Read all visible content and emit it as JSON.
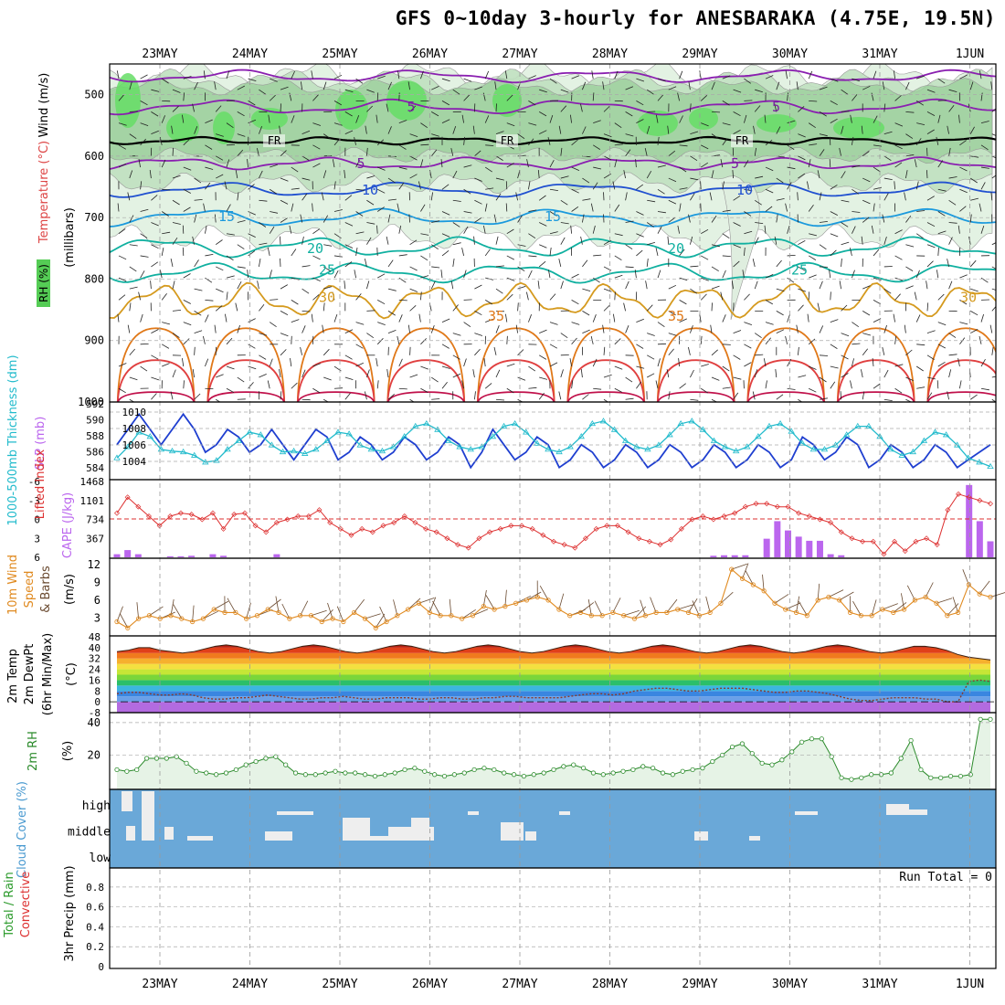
{
  "title": "GFS 0~10day 3-hourly for ANESBARAKA (4.75E, 19.5N)",
  "dates": [
    "23MAY",
    "24MAY",
    "25MAY",
    "26MAY",
    "27MAY",
    "28MAY",
    "29MAY",
    "30MAY",
    "31MAY",
    "1JUN"
  ],
  "colors": {
    "freezing": "#000000",
    "rh": "#66dd66",
    "slp": "#1f3fd0",
    "thickness": "#22bbcc",
    "lifted": "#dd3030",
    "cape": "#bb66ee",
    "wind10": "#e08a20",
    "barb": "#6a4a30",
    "rh2m": "#2a8a2a",
    "cloud": "#6aa8d8",
    "cloudfill": "#eeeeee"
  },
  "chart_data": [
    {
      "type": "heatmap",
      "id": "upper",
      "y_axis_title_rh": "RH (%)",
      "y_axis_title_temp": "Temperature (°C)",
      "y_axis_title_wind": "Wind (m/s)",
      "y_axis_title_units": "(millibars)",
      "yticks": [
        "500",
        "600",
        "700",
        "800",
        "900",
        "1000"
      ],
      "ylim": [
        450,
        1000
      ],
      "isotherm_labels": [
        {
          "text": "5",
          "level": 520,
          "color": "#7a1fa2"
        },
        {
          "text": "5",
          "level": 612,
          "color": "#7a1fa2"
        },
        {
          "text": "10",
          "level": 655,
          "color": "#2050d0"
        },
        {
          "text": "15",
          "level": 698,
          "color": "#1a99dd"
        },
        {
          "text": "20",
          "level": 750,
          "color": "#10b0a0"
        },
        {
          "text": "25",
          "level": 785,
          "color": "#10b0a0"
        },
        {
          "text": "30",
          "level": 830,
          "color": "#d59a1e"
        },
        {
          "text": "35",
          "level": 860,
          "color": "#e07818"
        }
      ],
      "freezing_label": "FR"
    },
    {
      "type": "line",
      "id": "slp_thickness",
      "ylabel_left": "1000-500mb Thickness (dm)",
      "ylabel_right": "SLP (mb)",
      "yticks_left": [
        "592",
        "590",
        "588",
        "586",
        "584"
      ],
      "yticks_right": [
        "1010",
        "1008",
        "1006",
        "1004"
      ],
      "series": [
        {
          "name": "SLP",
          "values": [
            1006,
            1008,
            1010,
            1008,
            1006,
            1008,
            1010,
            1008,
            1005,
            1006,
            1008,
            1007,
            1005,
            1006,
            1008,
            1006,
            1004,
            1006,
            1008,
            1007,
            1004,
            1005,
            1007,
            1006,
            1004,
            1005,
            1007,
            1006,
            1004,
            1005,
            1007,
            1006,
            1003,
            1005,
            1008,
            1006,
            1004,
            1005,
            1007,
            1006,
            1003,
            1004,
            1006,
            1005,
            1003,
            1004,
            1006,
            1005,
            1003,
            1004,
            1006,
            1005,
            1003,
            1004,
            1006,
            1005,
            1003,
            1004,
            1006,
            1005,
            1003,
            1004,
            1007,
            1006,
            1004,
            1005,
            1007,
            1006,
            1003,
            1004,
            1006,
            1005,
            1003,
            1004,
            1006,
            1005,
            1003,
            1004,
            1005,
            1006
          ]
        },
        {
          "name": "Thickness",
          "values": [
            585.5,
            586.8,
            588.5,
            588,
            586.5,
            586.3,
            586.2,
            585.8,
            585,
            585.2,
            586.5,
            587.5,
            588.5,
            588.2,
            587,
            586.2,
            586.3,
            586,
            586.5,
            587.5,
            588.5,
            588.3,
            587,
            586.5,
            586.3,
            586.8,
            588,
            589.2,
            589.5,
            588.8,
            587.5,
            586.8,
            586.5,
            586.8,
            588,
            589.2,
            589.5,
            588.5,
            587.2,
            586.5,
            586.2,
            586.8,
            588,
            589.5,
            589.8,
            588.8,
            587.5,
            586.8,
            586.5,
            587,
            588.2,
            589.5,
            589.8,
            588.8,
            587.5,
            586.8,
            586.3,
            586.8,
            588,
            589.2,
            589.5,
            588.6,
            587.2,
            586.5,
            586.5,
            587,
            588.2,
            589.2,
            589.2,
            588,
            586.5,
            585.8,
            586.2,
            587.5,
            588.5,
            588.2,
            587,
            585.5,
            585,
            584.5
          ]
        }
      ]
    },
    {
      "type": "bar",
      "id": "li_cape",
      "ylabel_left": "Lifted Index",
      "ylabel_right": "CAPE (J/kg)",
      "yticks_left": [
        "-6",
        "-3",
        "0",
        "3",
        "6"
      ],
      "yticks_right": [
        "1468",
        "1101",
        "734",
        "367",
        ""
      ],
      "series": [
        {
          "name": "Lifted Index",
          "values": [
            -1,
            -3.5,
            -2,
            -0.5,
            1,
            -0.5,
            -1,
            -0.8,
            0,
            -1,
            1.5,
            -0.8,
            -1,
            1,
            2,
            0.5,
            0,
            -0.5,
            -0.5,
            -1.5,
            0.5,
            1.5,
            2.5,
            1.5,
            2,
            1,
            0.5,
            -0.5,
            0.5,
            1.5,
            2,
            3,
            4,
            4.5,
            3,
            2,
            1.5,
            1,
            1,
            1.5,
            2.5,
            3.5,
            4,
            4.5,
            3,
            1.5,
            1,
            1,
            2,
            3,
            3.5,
            4,
            3.2,
            1.5,
            0,
            -0.5,
            0,
            -0.5,
            -1,
            -2,
            -2.5,
            -2.5,
            -2,
            -2,
            -1,
            -0.5,
            0,
            0.5,
            2,
            3,
            3.5,
            3.5,
            5.5,
            3.5,
            5,
            3.5,
            3,
            4,
            -1.5,
            -4,
            -3.5,
            -3,
            -2.5
          ]
        },
        {
          "name": "CAPE",
          "values": [
            60,
            140,
            60,
            0,
            0,
            20,
            20,
            30,
            0,
            60,
            30,
            0,
            0,
            0,
            0,
            60,
            0,
            0,
            0,
            0,
            0,
            0,
            0,
            0,
            0,
            0,
            0,
            0,
            0,
            0,
            0,
            0,
            0,
            0,
            0,
            0,
            0,
            0,
            0,
            0,
            0,
            0,
            0,
            0,
            0,
            0,
            0,
            0,
            0,
            0,
            0,
            0,
            0,
            0,
            0,
            0,
            30,
            40,
            40,
            40,
            0,
            360,
            700,
            520,
            400,
            320,
            320,
            60,
            40,
            0,
            0,
            0,
            0,
            0,
            0,
            0,
            0,
            0,
            0,
            0,
            1400,
            700,
            310
          ]
        }
      ]
    },
    {
      "type": "line",
      "id": "wind10m",
      "ylabel": "10m Wind Speed & Barbs (m/s)",
      "yticks": [
        "12",
        "9",
        "6",
        "3"
      ],
      "ylim": [
        1,
        13
      ],
      "values": [
        3,
        2,
        3.5,
        4,
        3.5,
        4,
        3.5,
        3,
        3.5,
        5,
        4.5,
        4.5,
        3.5,
        4,
        5,
        4.5,
        3.5,
        4,
        4,
        3,
        3.5,
        3,
        4.5,
        3.5,
        2,
        3,
        4,
        5,
        6,
        4.5,
        4,
        4,
        3.5,
        4,
        5.5,
        5,
        5.5,
        6,
        6.5,
        7,
        6.5,
        5,
        4,
        4.5,
        4,
        4,
        4.5,
        4,
        3.5,
        4,
        4.5,
        4.5,
        5,
        4.5,
        4,
        4.5,
        6,
        11.5,
        10,
        9,
        8,
        6,
        5,
        4.5,
        4,
        6.5,
        7,
        6.5,
        4.5,
        4,
        4,
        5,
        4.5,
        5,
        6.5,
        7,
        6,
        4,
        4.5,
        9,
        7.5,
        7
      ]
    },
    {
      "type": "area",
      "id": "temp2m",
      "ylabel": "2m Temp 2m DewPt (6hr Min/Max) (°C)",
      "yticks": [
        "48",
        "40",
        "32",
        "24",
        "16",
        "8",
        "0",
        "-8"
      ],
      "ylim": [
        -8,
        48
      ],
      "series": [
        {
          "name": "Temp",
          "values": [
            37,
            38,
            40,
            40,
            38,
            37,
            36,
            37,
            39,
            41,
            42,
            41,
            39,
            37,
            36,
            37,
            39,
            41,
            42,
            41,
            39,
            37,
            36,
            37,
            39,
            41,
            42,
            41,
            39,
            37,
            36,
            37,
            39,
            41,
            42,
            41,
            39,
            37,
            36,
            37,
            39,
            41,
            42,
            41,
            39,
            37,
            36,
            37,
            39,
            41,
            42,
            41,
            39,
            37,
            36,
            37,
            39,
            41,
            42,
            41,
            39,
            37,
            36,
            37,
            39,
            41,
            42,
            41,
            39,
            37,
            36,
            37,
            39,
            41,
            41,
            40,
            38,
            35,
            33,
            32,
            31
          ]
        },
        {
          "name": "DewPt",
          "values": [
            6,
            7,
            7,
            6,
            5,
            5,
            6,
            5,
            3,
            2,
            2,
            3,
            3,
            4,
            5,
            4,
            3,
            2,
            2,
            3,
            3,
            4,
            3,
            2,
            2,
            3,
            3,
            3,
            2,
            2,
            3,
            3,
            2,
            2,
            3,
            3,
            4,
            4,
            3,
            3,
            3,
            3,
            4,
            5,
            6,
            6,
            5,
            6,
            8,
            9,
            10,
            10,
            9,
            8,
            8,
            9,
            10,
            10,
            10,
            9,
            8,
            7,
            7,
            8,
            8,
            7,
            6,
            4,
            2,
            1,
            1,
            2,
            3,
            3,
            3,
            2,
            2,
            0,
            0,
            15,
            16,
            15
          ]
        }
      ]
    },
    {
      "type": "area",
      "id": "rh2m",
      "ylabel": "2m RH (%)",
      "yticks": [
        "40",
        "20"
      ],
      "ylim": [
        0,
        45
      ],
      "values": [
        11,
        10,
        11,
        18,
        18,
        18,
        19,
        15,
        10,
        9,
        8,
        9,
        11,
        14,
        16,
        18,
        19,
        14,
        9,
        8,
        8,
        9,
        10,
        9,
        9,
        8,
        7,
        8,
        9,
        11,
        12,
        10,
        8,
        7,
        8,
        9,
        11,
        12,
        11,
        9,
        8,
        7,
        8,
        9,
        11,
        13,
        14,
        12,
        9,
        8,
        9,
        10,
        11,
        13,
        12,
        9,
        8,
        10,
        11,
        12,
        16,
        20,
        25,
        27,
        21,
        15,
        14,
        17,
        22,
        28,
        30,
        30,
        19,
        6,
        5,
        6,
        8,
        8,
        9,
        18,
        29,
        11,
        6,
        6,
        7,
        7,
        8,
        42,
        42
      ]
    },
    {
      "type": "heatmap",
      "id": "cloud",
      "ylabel": "Cloud Cover (%)",
      "ytick_labels": [
        "high",
        "middle",
        "low"
      ]
    },
    {
      "type": "bar",
      "id": "precip",
      "ylabel_left": "Total / Rain",
      "ylabel_left2": "Convective",
      "ylabel": "3hr Precip (mm)",
      "yticks": [
        "0.8",
        "0.6",
        "0.4",
        "0.2",
        "0"
      ],
      "ylim": [
        0,
        0.9
      ],
      "run_total": "Run Total = 0",
      "values": []
    }
  ]
}
